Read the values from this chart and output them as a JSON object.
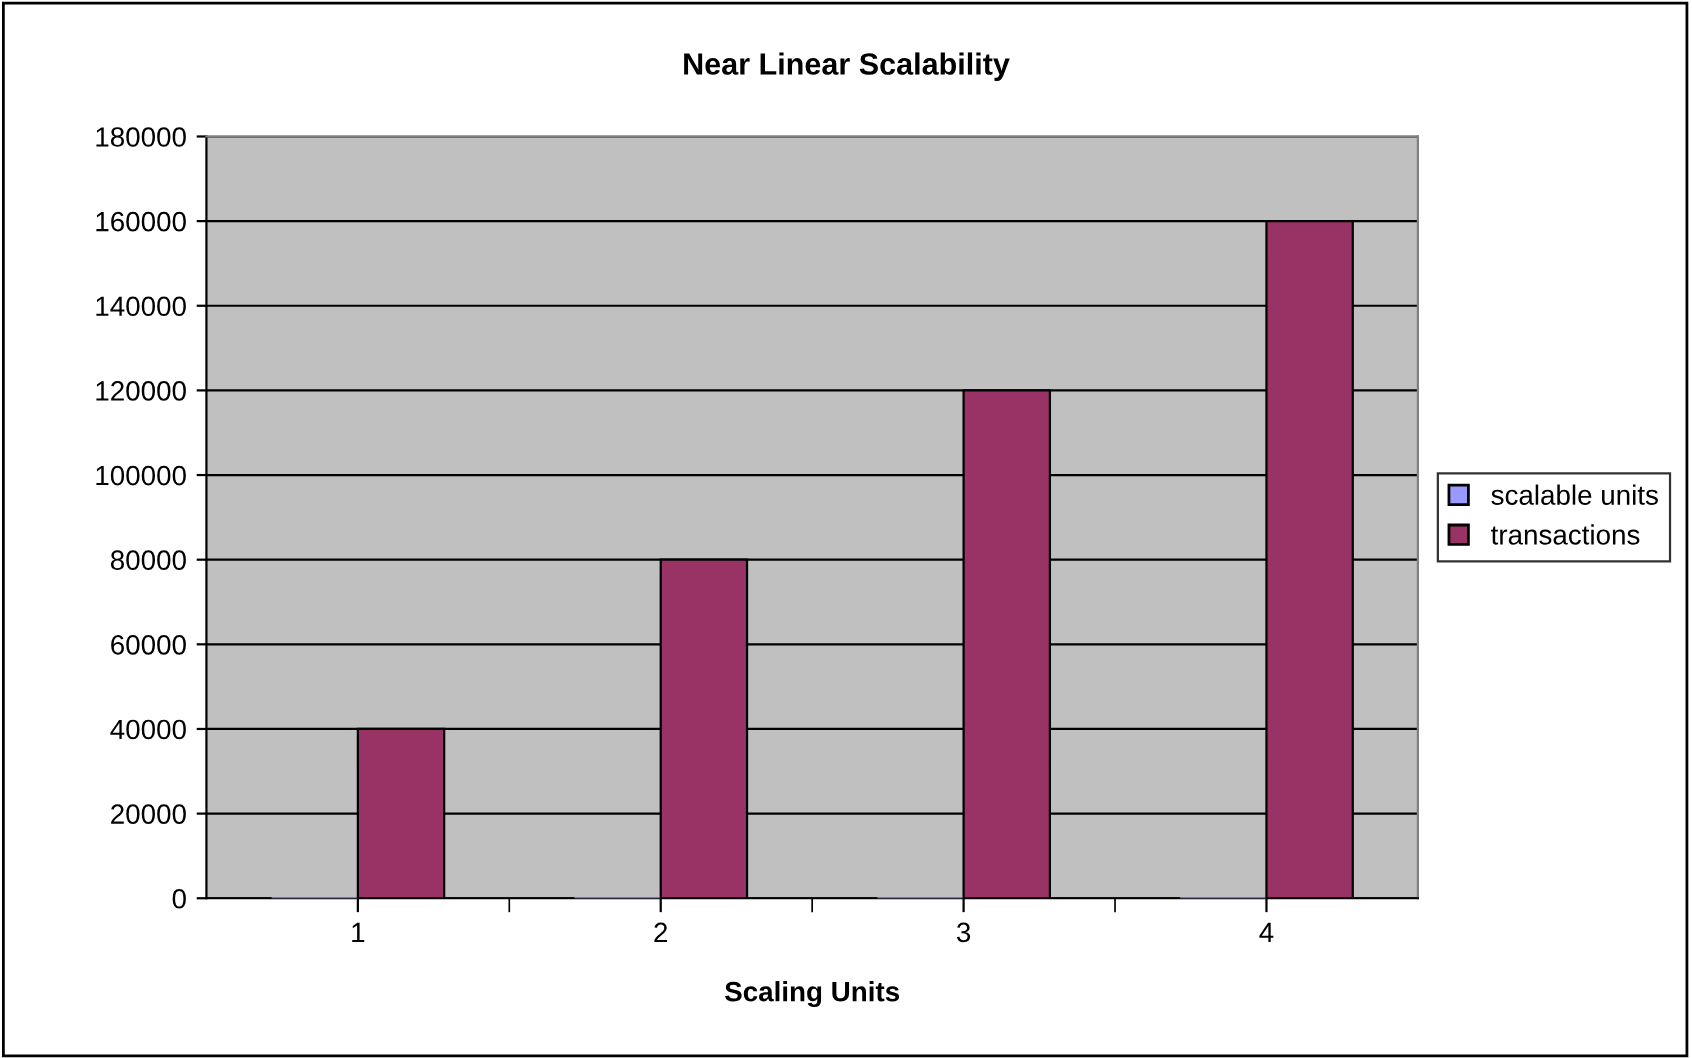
{
  "chart_data": {
    "type": "bar",
    "title": "Near Linear Scalability",
    "xlabel": "Scaling Units",
    "categories": [
      "1",
      "2",
      "3",
      "4"
    ],
    "series": [
      {
        "name": "scalable units",
        "color": "#9999ff",
        "values": [
          0,
          0,
          0,
          0
        ]
      },
      {
        "name": "transactions",
        "color": "#993366",
        "values": [
          40000,
          80000,
          120000,
          160000
        ]
      }
    ],
    "ylim": [
      0,
      180000
    ],
    "yticks": [
      0,
      20000,
      40000,
      60000,
      80000,
      100000,
      120000,
      140000,
      160000,
      180000
    ],
    "grid": "y",
    "legend": "right"
  }
}
